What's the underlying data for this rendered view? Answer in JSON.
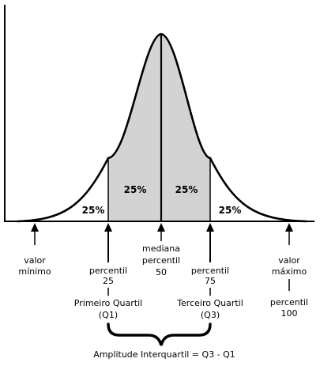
{
  "colors": {
    "area_fill": "#d3d3d3",
    "stroke": "#000000",
    "background": "#ffffff"
  },
  "segments": {
    "lower_tail": "25%",
    "q1_to_median": "25%",
    "median_to_q3": "25%",
    "upper_tail": "25%"
  },
  "markers": {
    "minimum": {
      "line1": "valor",
      "line2": "mínimo"
    },
    "q1": {
      "line1": "percentil",
      "line2": "25",
      "line3": "Primeiro Quartil",
      "line4": "(Q1)"
    },
    "median": {
      "line1": "mediana",
      "line2": "percentil",
      "line3": "50"
    },
    "q3": {
      "line1": "percentil",
      "line2": "75",
      "line3": "Terceiro Quartil",
      "line4": "(Q3)"
    },
    "maximum": {
      "line1": "valor",
      "line2": "máximo",
      "line3": "percentil",
      "line4": "100"
    }
  },
  "iqr_label": "Amplitude Interquartil = Q3 - Q1"
}
